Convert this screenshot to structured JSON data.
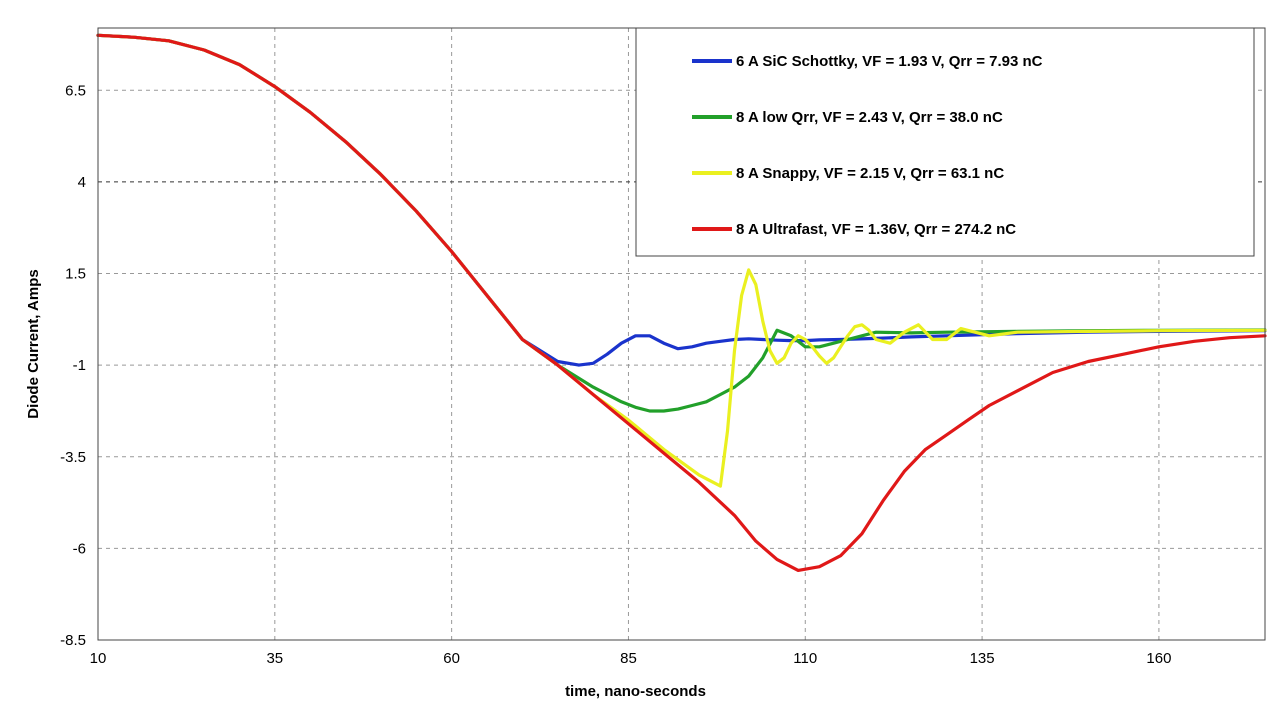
{
  "chart_data": {
    "type": "line",
    "title": "",
    "xlabel": "time, nano-seconds",
    "ylabel": "Diode Current, Amps",
    "xlim": [
      10,
      175
    ],
    "ylim": [
      -8.5,
      8.2
    ],
    "x_ticks": [
      10,
      35,
      60,
      85,
      110,
      135,
      160
    ],
    "y_ticks": [
      6.5,
      4,
      1.5,
      -1,
      -3.5,
      -6,
      -8.5
    ],
    "grid": true,
    "legend_position": "top-right",
    "series": [
      {
        "name": "6 A SiC Schottky, VF = 1.93 V,  Qrr = 7.93 nC",
        "color": "#1a33cc",
        "x": [
          10,
          15,
          20,
          25,
          30,
          35,
          40,
          45,
          50,
          55,
          60,
          65,
          70,
          75,
          78,
          80,
          82,
          84,
          86,
          88,
          90,
          92,
          94,
          96,
          98,
          100,
          102,
          104,
          106,
          108,
          110,
          112,
          115,
          120,
          125,
          130,
          140,
          150,
          160,
          175
        ],
        "y": [
          8.0,
          7.95,
          7.85,
          7.6,
          7.2,
          6.6,
          5.9,
          5.1,
          4.2,
          3.2,
          2.1,
          0.9,
          -0.3,
          -0.9,
          -1.0,
          -0.95,
          -0.7,
          -0.4,
          -0.2,
          -0.2,
          -0.4,
          -0.55,
          -0.5,
          -0.4,
          -0.35,
          -0.3,
          -0.28,
          -0.3,
          -0.32,
          -0.33,
          -0.33,
          -0.31,
          -0.3,
          -0.27,
          -0.23,
          -0.2,
          -0.14,
          -0.1,
          -0.08,
          -0.06
        ]
      },
      {
        "name": "8 A low Qrr, VF = 2.43 V, Qrr = 38.0 nC",
        "color": "#22a02a",
        "x": [
          10,
          15,
          20,
          25,
          30,
          35,
          40,
          45,
          50,
          55,
          60,
          65,
          70,
          75,
          80,
          84,
          86,
          88,
          90,
          92,
          94,
          96,
          98,
          100,
          102,
          104,
          106,
          108,
          110,
          112,
          114,
          116,
          118,
          120,
          125,
          130,
          140,
          150,
          160,
          175
        ],
        "y": [
          8.0,
          7.95,
          7.85,
          7.6,
          7.2,
          6.6,
          5.9,
          5.1,
          4.2,
          3.2,
          2.1,
          0.9,
          -0.3,
          -1.0,
          -1.6,
          -2.0,
          -2.15,
          -2.25,
          -2.25,
          -2.2,
          -2.1,
          -2.0,
          -1.8,
          -1.6,
          -1.3,
          -0.8,
          -0.05,
          -0.2,
          -0.5,
          -0.5,
          -0.4,
          -0.3,
          -0.2,
          -0.1,
          -0.12,
          -0.1,
          -0.08,
          -0.06,
          -0.05,
          -0.04
        ]
      },
      {
        "name": "8 A Snappy, VF = 2.15 V, Qrr = 63.1 nC",
        "color": "#eaf020",
        "x": [
          10,
          15,
          20,
          25,
          30,
          35,
          40,
          45,
          50,
          55,
          60,
          65,
          70,
          75,
          80,
          85,
          90,
          95,
          98,
          99,
          100,
          101,
          102,
          103,
          104,
          105,
          106,
          107,
          108,
          109,
          110,
          111,
          112,
          113,
          114,
          115,
          116,
          117,
          118,
          119,
          120,
          122,
          124,
          126,
          128,
          130,
          132,
          134,
          136,
          140,
          150,
          160,
          175
        ],
        "y": [
          8.0,
          7.95,
          7.85,
          7.6,
          7.2,
          6.6,
          5.9,
          5.1,
          4.2,
          3.2,
          2.1,
          0.9,
          -0.3,
          -1.0,
          -1.8,
          -2.5,
          -3.3,
          -4.0,
          -4.3,
          -2.8,
          -0.6,
          0.9,
          1.6,
          1.2,
          0.2,
          -0.6,
          -0.95,
          -0.8,
          -0.4,
          -0.2,
          -0.3,
          -0.5,
          -0.75,
          -0.95,
          -0.8,
          -0.5,
          -0.2,
          0.05,
          0.1,
          -0.05,
          -0.3,
          -0.4,
          -0.1,
          0.1,
          -0.3,
          -0.3,
          0.0,
          -0.1,
          -0.2,
          -0.1,
          -0.08,
          -0.06,
          -0.05
        ]
      },
      {
        "name": "8 A Ultrafast, VF = 1.36V, Qrr = 274.2 nC",
        "color": "#e01818",
        "x": [
          10,
          15,
          20,
          25,
          30,
          35,
          40,
          45,
          50,
          55,
          60,
          65,
          70,
          75,
          80,
          85,
          90,
          95,
          100,
          103,
          106,
          109,
          112,
          115,
          118,
          121,
          124,
          127,
          130,
          133,
          136,
          140,
          145,
          150,
          155,
          160,
          165,
          170,
          175
        ],
        "y": [
          8.0,
          7.95,
          7.85,
          7.6,
          7.2,
          6.6,
          5.9,
          5.1,
          4.2,
          3.2,
          2.1,
          0.9,
          -0.3,
          -1.0,
          -1.8,
          -2.6,
          -3.4,
          -4.2,
          -5.1,
          -5.8,
          -6.3,
          -6.6,
          -6.5,
          -6.2,
          -5.6,
          -4.7,
          -3.9,
          -3.3,
          -2.9,
          -2.5,
          -2.1,
          -1.7,
          -1.2,
          -0.9,
          -0.7,
          -0.5,
          -0.35,
          -0.25,
          -0.2
        ]
      }
    ]
  }
}
